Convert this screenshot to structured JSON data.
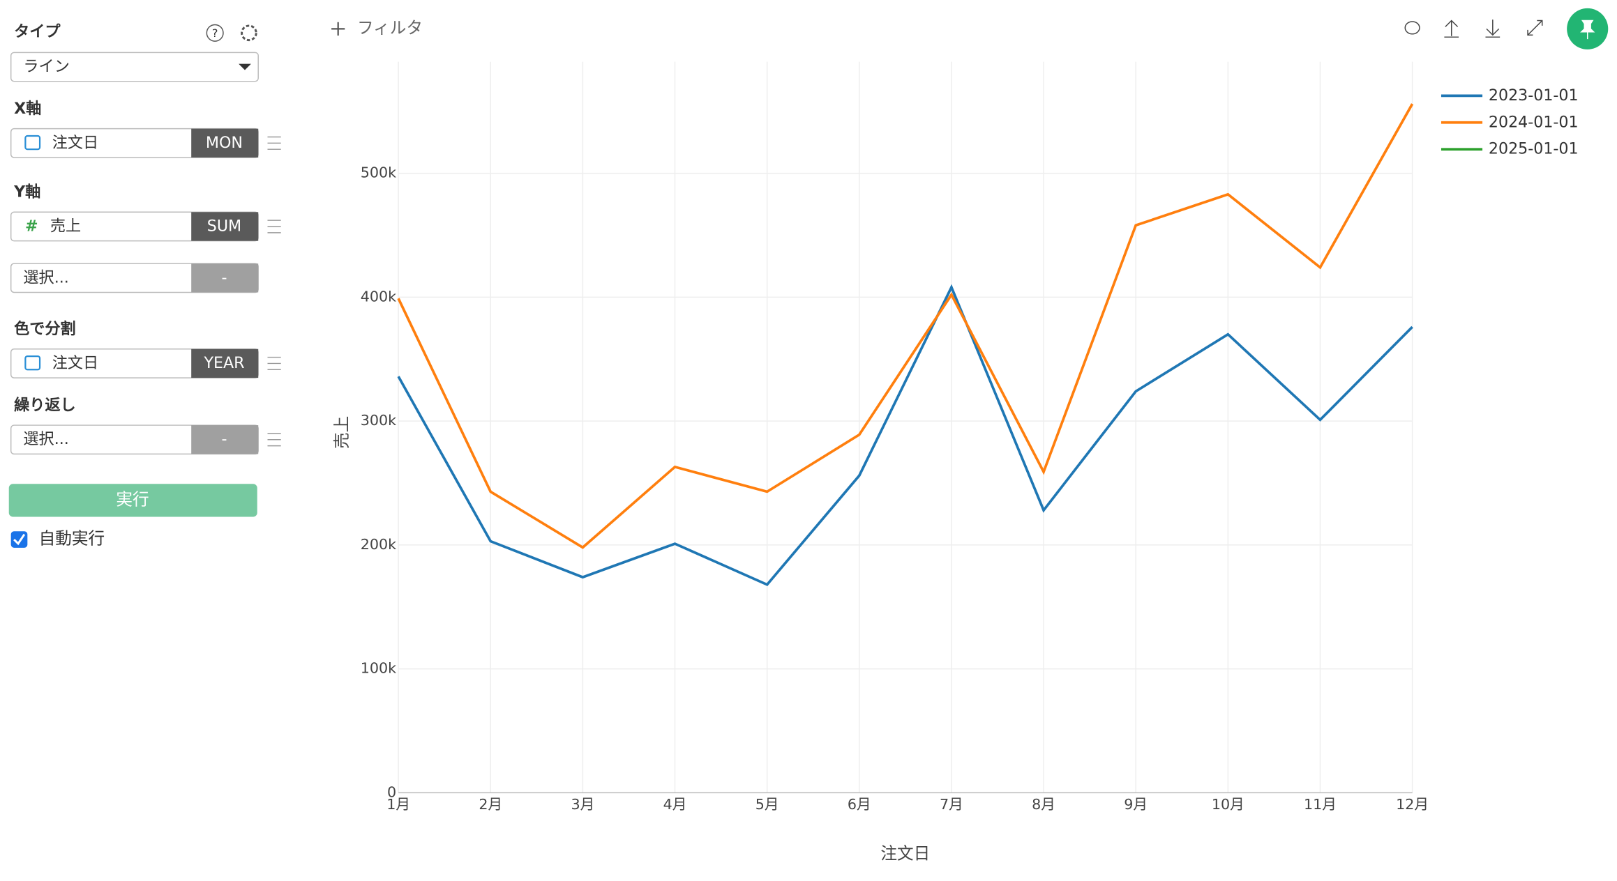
{
  "ui": {
    "filter": "フィルタ",
    "type_label": "タイプ",
    "type_value": "ライン",
    "x_axis_label": "X軸",
    "x_field": "注文日",
    "x_agg": "MON",
    "y_axis_label": "Y軸",
    "y_field": "売上",
    "y_agg": "SUM",
    "y_extra": "選択...",
    "y_extra_agg": "-",
    "color_label": "色で分割",
    "color_field": "注文日",
    "color_agg": "YEAR",
    "repeat_label": "繰り返し",
    "repeat_field": "選択...",
    "repeat_agg": "-",
    "run": "実行",
    "auto_run": "自動実行"
  },
  "chart_data": {
    "type": "line",
    "x_label": "注文日",
    "y_label": "売上",
    "categories": [
      "1月",
      "2月",
      "3月",
      "4月",
      "5月",
      "6月",
      "7月",
      "8月",
      "9月",
      "10月",
      "11月",
      "12月"
    ],
    "series": [
      {
        "name": "2023-01-01",
        "color": "#1f77b4",
        "values": [
          336000,
          203000,
          174000,
          201000,
          168000,
          256000,
          408000,
          228000,
          324000,
          370000,
          301000,
          376000
        ]
      },
      {
        "name": "2024-01-01",
        "color": "#ff7f0e",
        "values": [
          399000,
          243000,
          198000,
          263000,
          243000,
          289000,
          402000,
          259000,
          458000,
          483000,
          424000,
          556000
        ]
      },
      {
        "name": "2025-01-01",
        "color": "#2ca02c",
        "values": [
          null,
          null,
          null,
          null,
          null,
          null,
          null,
          null,
          null,
          null,
          null,
          null
        ]
      }
    ],
    "ylim": [
      0,
      590000
    ],
    "yticks": [
      {
        "value": 0,
        "label": "0"
      },
      {
        "value": 100000,
        "label": "100k"
      },
      {
        "value": 200000,
        "label": "200k"
      },
      {
        "value": 300000,
        "label": "300k"
      },
      {
        "value": 400000,
        "label": "400k"
      },
      {
        "value": 500000,
        "label": "500k"
      }
    ],
    "grid": true,
    "legend": "top-right"
  }
}
